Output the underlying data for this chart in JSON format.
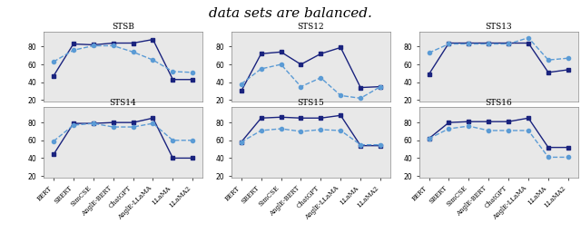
{
  "title": "data sets are balanced.",
  "title_fontsize": 11,
  "subplots": [
    {
      "title": "STSB",
      "dark_line": [
        47,
        83,
        82,
        84,
        84,
        88,
        43,
        43
      ],
      "light_line": [
        63,
        76,
        81,
        81,
        74,
        65,
        52,
        51
      ]
    },
    {
      "title": "STS12",
      "dark_line": [
        30,
        72,
        74,
        60,
        72,
        79,
        34,
        35
      ],
      "light_line": [
        38,
        55,
        60,
        35,
        45,
        25,
        22,
        35
      ]
    },
    {
      "title": "STS13",
      "dark_line": [
        49,
        84,
        84,
        84,
        84,
        84,
        51,
        54
      ],
      "light_line": [
        73,
        83,
        83,
        83,
        83,
        90,
        65,
        67
      ]
    },
    {
      "title": "STS14",
      "dark_line": [
        44,
        79,
        79,
        80,
        80,
        85,
        40,
        40
      ],
      "light_line": [
        59,
        77,
        79,
        75,
        75,
        79,
        60,
        60
      ]
    },
    {
      "title": "STS15",
      "dark_line": [
        58,
        85,
        86,
        85,
        85,
        88,
        54,
        54
      ],
      "light_line": [
        58,
        71,
        73,
        70,
        72,
        71,
        55,
        55
      ]
    },
    {
      "title": "STS16",
      "dark_line": [
        62,
        80,
        81,
        81,
        81,
        85,
        52,
        52
      ],
      "light_line": [
        62,
        73,
        76,
        71,
        71,
        71,
        41,
        41
      ]
    }
  ],
  "x_labels": [
    "BERT",
    "SBERT",
    "SimCSE",
    "AnglE-BERT",
    "ChatGPT",
    "AnglE-LLaMA",
    "LLaMA",
    "LLaMA2"
  ],
  "dark_color": "#1a237e",
  "light_color": "#5b9bd5",
  "bg_color": "#e8e8e8",
  "yticks": [
    20,
    40,
    60,
    80
  ],
  "ylim": [
    18,
    97
  ]
}
